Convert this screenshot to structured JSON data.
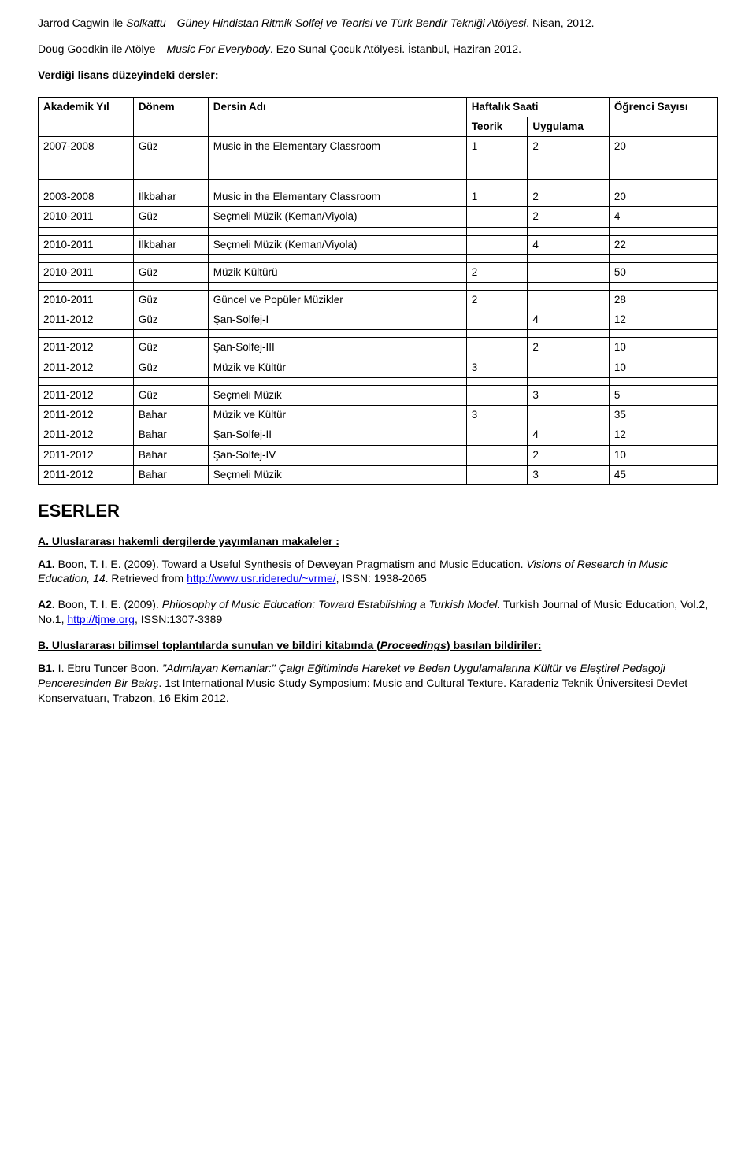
{
  "intro": {
    "p1_pre": "Jarrod Cagwin ile ",
    "p1_italic": "Solkattu—Güney Hindistan Ritmik Solfej ve Teorisi ve Türk Bendir Tekniği Atölyesi",
    "p1_post": ". Nisan, 2012.",
    "p2_pre": "Doug Goodkin ile Atölye—",
    "p2_italic": "Music For Everybody",
    "p2_post": ". Ezo Sunal Çocuk Atölyesi. İstanbul, Haziran 2012.",
    "p3": "Verdiği lisans düzeyindeki dersler:"
  },
  "table": {
    "headers": {
      "akademik_yil": "Akademik Yıl",
      "donem": "Dönem",
      "dersin_adi": "Dersin Adı",
      "haftalik_saati": "Haftalık Saati",
      "teorik": "Teorik",
      "uygulama": "Uygulama",
      "ogrenci_sayisi": "Öğrenci Sayısı"
    },
    "rows": [
      {
        "yil": "2007-2008",
        "donem": "Güz",
        "ad": "Music in the Elementary Classroom",
        "teorik": "1",
        "uyg": "2",
        "say": "20",
        "tall": true
      },
      {
        "spacer": true
      },
      {
        "yil": "2003-2008",
        "donem": "İlkbahar",
        "ad": "Music in the Elementary Classroom",
        "teorik": "1",
        "uyg": "2",
        "say": "20",
        "rowspan_yil": false
      },
      {
        "yil": "2010-2011",
        "donem": "Güz",
        "ad": "Seçmeli Müzik (Keman/Viyola)",
        "teorik": "",
        "uyg": "2",
        "say": "4"
      },
      {
        "spacer": true
      },
      {
        "yil": "2010-2011",
        "donem": "İlkbahar",
        "ad": "Seçmeli Müzik (Keman/Viyola)",
        "teorik": "",
        "uyg": "4",
        "say": "22"
      },
      {
        "spacer": true
      },
      {
        "yil": "2010-2011",
        "donem": "Güz",
        "ad": "Müzik Kültürü",
        "teorik": "2",
        "uyg": "",
        "say": "50"
      },
      {
        "spacer": true
      },
      {
        "yil": "2010-2011",
        "donem": "Güz",
        "ad": "Güncel ve Popüler Müzikler",
        "teorik": "2",
        "uyg": "",
        "say": "28"
      },
      {
        "yil": "2011-2012",
        "donem": "Güz",
        "ad": "Şan-Solfej-I",
        "teorik": "",
        "uyg": "4",
        "say": "12"
      },
      {
        "spacer": true
      },
      {
        "yil": "2011-2012",
        "donem": "Güz",
        "ad": "Şan-Solfej-III",
        "teorik": "",
        "uyg": "2",
        "say": "10"
      },
      {
        "yil": "2011-2012",
        "donem": "Güz",
        "ad": "Müzik ve Kültür",
        "teorik": "3",
        "uyg": "",
        "say": "10"
      },
      {
        "spacer": true
      },
      {
        "yil": "2011-2012",
        "donem": "Güz",
        "ad": "Seçmeli Müzik",
        "teorik": "",
        "uyg": "3",
        "say": "5"
      },
      {
        "yil": "2011-2012",
        "donem": "Bahar",
        "ad": "Müzik ve Kültür",
        "teorik": "3",
        "uyg": "",
        "say": "35"
      },
      {
        "yil": "2011-2012",
        "donem": "Bahar",
        "ad": "Şan-Solfej-II",
        "teorik": "",
        "uyg": "4",
        "say": "12"
      },
      {
        "yil": "2011-2012",
        "donem": "Bahar",
        "ad": "Şan-Solfej-IV",
        "teorik": "",
        "uyg": "2",
        "say": "10"
      },
      {
        "yil": "2011-2012",
        "donem": "Bahar",
        "ad": "Seçmeli Müzik",
        "teorik": "",
        "uyg": "3",
        "say": "45"
      }
    ],
    "col_widths": [
      "14%",
      "11%",
      "38%",
      "9%",
      "12%",
      "16%"
    ]
  },
  "eserler": {
    "heading": "ESERLER",
    "A_head": "A. Uluslararası hakemli dergilerde yayımlanan makaleler :",
    "A1_label": "A1.",
    "A1_text1": " Boon, T. I. E.  (2009). Toward a Useful Synthesis of Deweyan Pragmatism and Music Education. ",
    "A1_italic": "Visions of Research in Music Education, 14",
    "A1_text2": ". Retrieved from ",
    "A1_link_text": "http://www.usr.rideredu/~vrme/",
    "A1_text3": ", ISSN: 1938-2065",
    "A2_label": "A2.",
    "A2_text1": " Boon, T. I. E. (2009). ",
    "A2_italic": "Philosophy of Music Education: Toward Establishing a Turkish Model",
    "A2_text2": ". Turkish Journal of Music Education, Vol.2, No.1, ",
    "A2_link_text": "http://tjme.org",
    "A2_text3": ", ISSN:1307-3389",
    "B_head_pre": "B. Uluslararası bilimsel toplantılarda sunulan ve bildiri kitabında (",
    "B_head_italic": "Proceedings",
    "B_head_post": ") basılan bildiriler:",
    "B1_label": "B1.",
    "B1_text1": " I. Ebru Tuncer Boon. ",
    "B1_italic": "\"Adımlayan Kemanlar:\" Çalgı Eğitiminde Hareket ve Beden Uygulamalarına Kültür ve Eleştirel Pedagoji Penceresinden Bir Bakış",
    "B1_text2": ". 1st International Music Study Symposium: Music and Cultural Texture. Karadeniz Teknik Üniversitesi Devlet Konservatuarı, Trabzon, 16 Ekim 2012."
  }
}
